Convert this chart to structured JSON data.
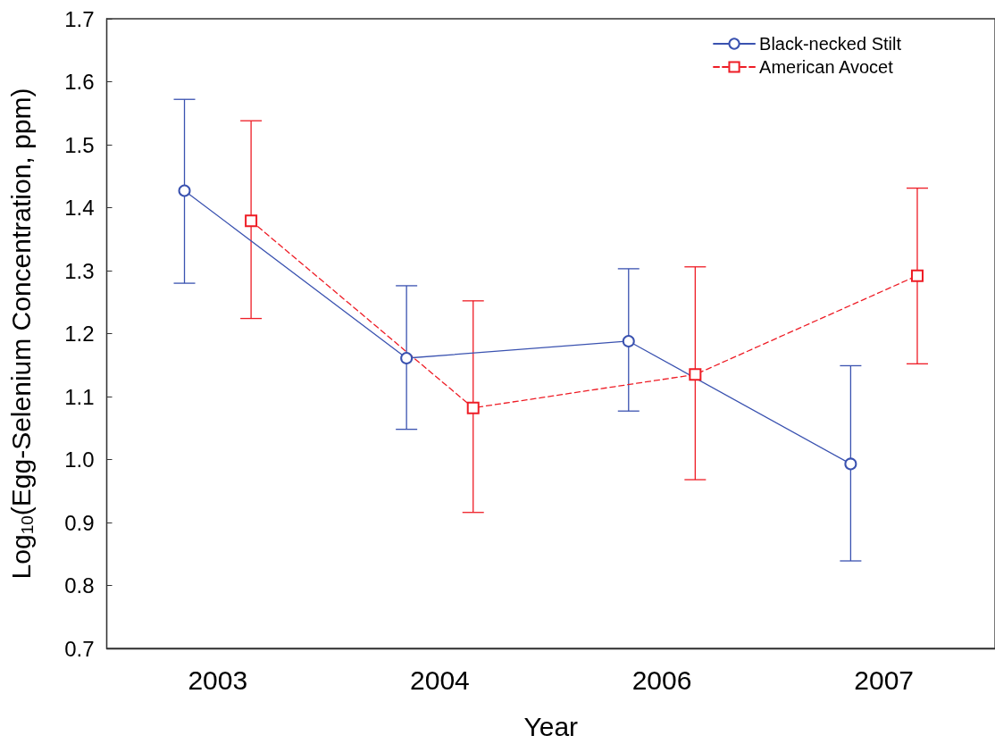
{
  "chart_data": {
    "type": "line",
    "xlabel": "Year",
    "ylabel": "Log$_{10}$(Egg-Selenium Concentration, ppm)",
    "categories": [
      "2003",
      "2004",
      "2006",
      "2007"
    ],
    "series": [
      {
        "name": "Black-necked Stilt",
        "color": "#3a52b0",
        "marker": "circle",
        "line_style": "solid",
        "values": [
          1.427,
          1.161,
          1.188,
          0.993
        ],
        "errors": [
          [
            1.28,
            1.572
          ],
          [
            1.048,
            1.276
          ],
          [
            1.077,
            1.303
          ],
          [
            0.839,
            1.149
          ]
        ]
      },
      {
        "name": "American Avocet",
        "color": "#ee1c25",
        "marker": "square",
        "line_style": "dashed",
        "values": [
          1.379,
          1.082,
          1.135,
          1.292
        ],
        "errors": [
          [
            1.224,
            1.538
          ],
          [
            0.916,
            1.252
          ],
          [
            0.968,
            1.306
          ],
          [
            1.152,
            1.431
          ]
        ]
      }
    ],
    "ylim": [
      0.7,
      1.7
    ],
    "yticks": [
      0.7,
      0.8,
      0.9,
      {
        "value": 1,
        "label": "1.0"
      },
      1.1,
      1.2,
      1.3,
      1.4,
      1.5,
      1.6,
      1.7
    ],
    "grid": false,
    "legend": "top right"
  }
}
